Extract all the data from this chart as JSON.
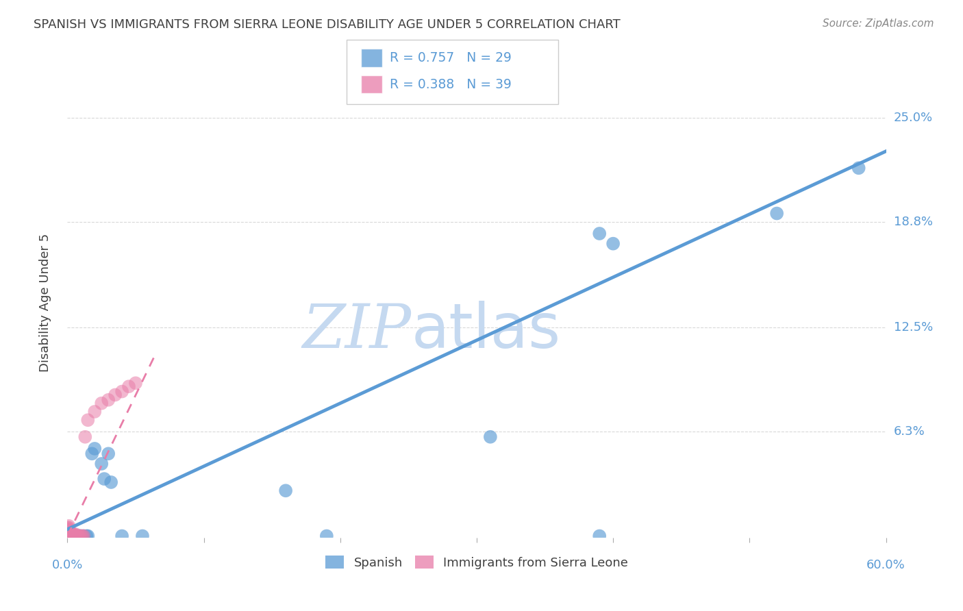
{
  "title": "SPANISH VS IMMIGRANTS FROM SIERRA LEONE DISABILITY AGE UNDER 5 CORRELATION CHART",
  "source": "Source: ZipAtlas.com",
  "ylabel": "Disability Age Under 5",
  "ytick_labels": [
    "25.0%",
    "18.8%",
    "12.5%",
    "6.3%"
  ],
  "ytick_positions": [
    0.25,
    0.188,
    0.125,
    0.063
  ],
  "xlim": [
    0.0,
    0.6
  ],
  "ylim": [
    0.0,
    0.28
  ],
  "blue_color": "#5b9bd5",
  "pink_color": "#e87da8",
  "R_blue": 0.757,
  "N_blue": 29,
  "R_pink": 0.388,
  "N_pink": 39,
  "blue_scatter": [
    [
      0.001,
      0.001
    ],
    [
      0.002,
      0.001
    ],
    [
      0.003,
      0.001
    ],
    [
      0.004,
      0.001
    ],
    [
      0.005,
      0.001
    ],
    [
      0.006,
      0.001
    ],
    [
      0.007,
      0.001
    ],
    [
      0.008,
      0.001
    ],
    [
      0.009,
      0.001
    ],
    [
      0.01,
      0.001
    ],
    [
      0.012,
      0.001
    ],
    [
      0.014,
      0.001
    ],
    [
      0.015,
      0.001
    ],
    [
      0.018,
      0.05
    ],
    [
      0.02,
      0.053
    ],
    [
      0.025,
      0.044
    ],
    [
      0.027,
      0.035
    ],
    [
      0.03,
      0.05
    ],
    [
      0.032,
      0.033
    ],
    [
      0.04,
      0.001
    ],
    [
      0.055,
      0.001
    ],
    [
      0.16,
      0.028
    ],
    [
      0.19,
      0.001
    ],
    [
      0.31,
      0.06
    ],
    [
      0.39,
      0.001
    ],
    [
      0.39,
      0.181
    ],
    [
      0.4,
      0.175
    ],
    [
      0.52,
      0.193
    ],
    [
      0.58,
      0.22
    ]
  ],
  "pink_scatter": [
    [
      0.0,
      0.001
    ],
    [
      0.0,
      0.002
    ],
    [
      0.0,
      0.003
    ],
    [
      0.0,
      0.004
    ],
    [
      0.0,
      0.005
    ],
    [
      0.0,
      0.006
    ],
    [
      0.001,
      0.001
    ],
    [
      0.001,
      0.002
    ],
    [
      0.001,
      0.003
    ],
    [
      0.001,
      0.004
    ],
    [
      0.001,
      0.005
    ],
    [
      0.001,
      0.006
    ],
    [
      0.001,
      0.007
    ],
    [
      0.002,
      0.001
    ],
    [
      0.002,
      0.002
    ],
    [
      0.002,
      0.003
    ],
    [
      0.003,
      0.001
    ],
    [
      0.003,
      0.002
    ],
    [
      0.004,
      0.001
    ],
    [
      0.004,
      0.002
    ],
    [
      0.005,
      0.001
    ],
    [
      0.005,
      0.002
    ],
    [
      0.006,
      0.001
    ],
    [
      0.006,
      0.002
    ],
    [
      0.007,
      0.001
    ],
    [
      0.008,
      0.001
    ],
    [
      0.009,
      0.001
    ],
    [
      0.01,
      0.001
    ],
    [
      0.011,
      0.001
    ],
    [
      0.012,
      0.001
    ],
    [
      0.013,
      0.06
    ],
    [
      0.015,
      0.07
    ],
    [
      0.02,
      0.075
    ],
    [
      0.025,
      0.08
    ],
    [
      0.03,
      0.082
    ],
    [
      0.035,
      0.085
    ],
    [
      0.04,
      0.087
    ],
    [
      0.045,
      0.09
    ],
    [
      0.05,
      0.092
    ]
  ],
  "blue_line_x": [
    0.0,
    0.6
  ],
  "blue_line_y": [
    0.005,
    0.23
  ],
  "pink_line_x": [
    0.0,
    0.065
  ],
  "pink_line_y": [
    0.001,
    0.11
  ],
  "background_color": "#ffffff",
  "grid_color": "#d8d8d8",
  "title_color": "#404040",
  "axis_color": "#5b9bd5",
  "watermark_zip_color": "#c5d9f0",
  "watermark_atlas_color": "#c5d9f0"
}
